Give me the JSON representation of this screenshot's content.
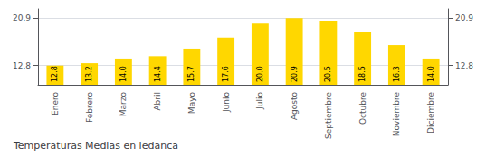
{
  "chart_data": {
    "type": "bar",
    "title": "Temperaturas Medias en ledanca",
    "categories": [
      "Enero",
      "Febrero",
      "Marzo",
      "Abril",
      "Mayo",
      "Junio",
      "Julio",
      "Agosto",
      "Septiembre",
      "Octubre",
      "Noviembre",
      "Diciembre"
    ],
    "values": [
      12.8,
      13.2,
      14.0,
      14.4,
      15.7,
      17.6,
      20.0,
      20.9,
      20.5,
      18.5,
      16.3,
      14.0
    ],
    "value_labels": [
      "12.8",
      "13.2",
      "14.0",
      "14.4",
      "15.7",
      "17.6",
      "20.0",
      "20.9",
      "20.5",
      "18.5",
      "16.3",
      "14.0"
    ],
    "color": "#FFD700",
    "ylim": [
      9.5,
      22.5
    ],
    "yticks": [
      12.8,
      20.9
    ],
    "grid": true,
    "data_labels": true
  }
}
